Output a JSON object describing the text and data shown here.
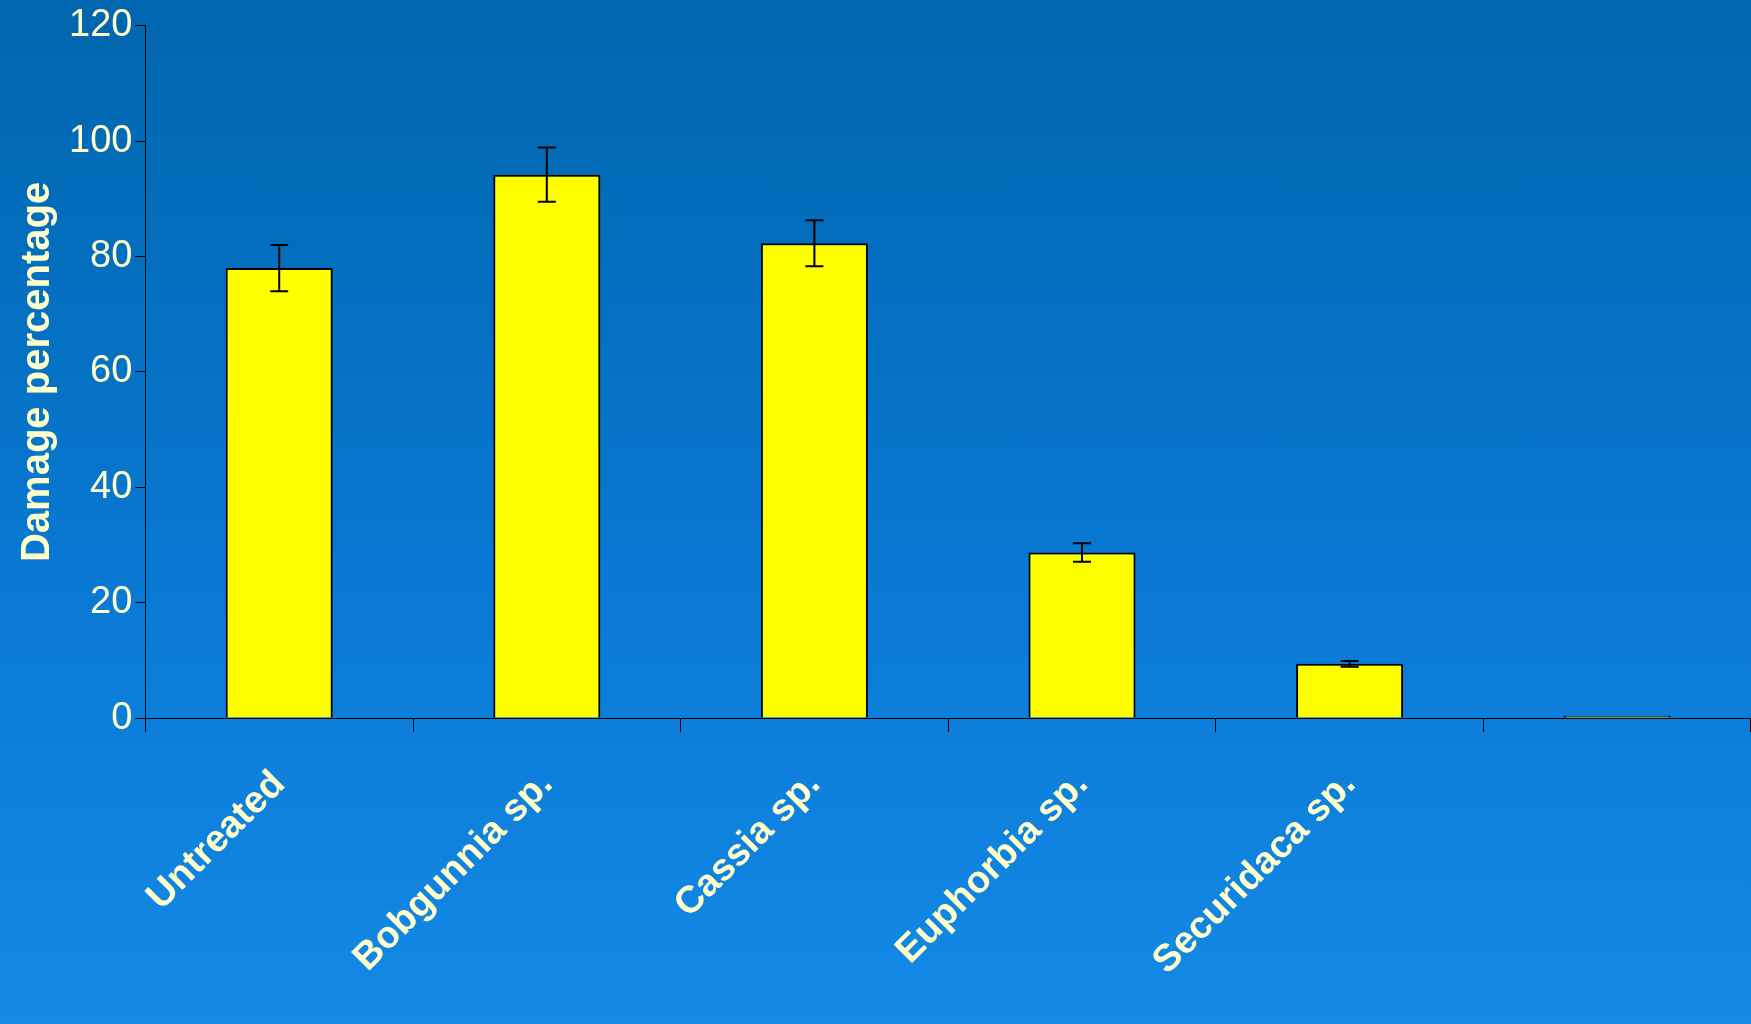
{
  "chart_data": {
    "type": "bar",
    "ylabel": "Damage percentage",
    "categories": [
      "Untreated",
      "Bobgunnia sp.",
      "Cassia sp.",
      "Euphorbia sp.",
      "Securidaca sp.",
      null
    ],
    "values": [
      78,
      94.2,
      82.3,
      28.7,
      9.4,
      0.4
    ],
    "errors": [
      4,
      4.7,
      4,
      1.6,
      0.5,
      null
    ],
    "color": "#ffff00",
    "ylim": [
      0,
      120
    ],
    "yticks": [
      0,
      20,
      40,
      60,
      80,
      100,
      120
    ],
    "grid": false,
    "legend": false
  }
}
